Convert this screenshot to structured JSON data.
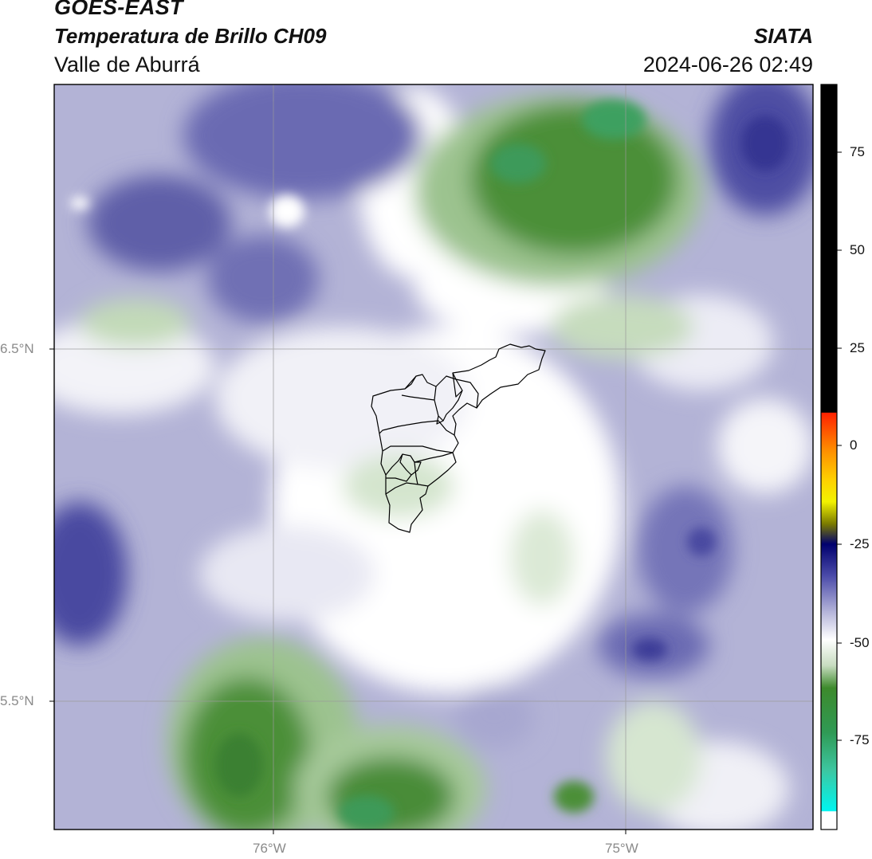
{
  "header": {
    "satellite": "GOES-EAST",
    "product": "Temperatura de Brillo CH09",
    "region": "Valle de Aburrá",
    "organization": "SIATA",
    "datetime": "2024-06-26 02:49"
  },
  "map": {
    "lat_labels": [
      "6.5°N",
      "5.5°N"
    ],
    "lon_labels": [
      "76°W",
      "75°W"
    ],
    "gridlines": true
  },
  "colorbar": {
    "ticks": [
      "75",
      "50",
      "25",
      "0",
      "-25",
      "-50",
      "-75"
    ],
    "stops": [
      {
        "value": "> 8",
        "color": "#000000"
      },
      {
        "value": "0",
        "color": "#ff2a00"
      },
      {
        "value": "-10",
        "color": "#ffcc00"
      },
      {
        "value": "-20",
        "color": "#f7f700"
      },
      {
        "value": "-25",
        "color": "#00006e"
      },
      {
        "value": "-38",
        "color": "#b4b4d8"
      },
      {
        "value": "-50",
        "color": "#ffffff"
      },
      {
        "value": "-62",
        "color": "#3d8a2c"
      },
      {
        "value": "-80",
        "color": "#3dbd7c"
      },
      {
        "value": "-90",
        "color": "#00f5f0"
      }
    ]
  }
}
